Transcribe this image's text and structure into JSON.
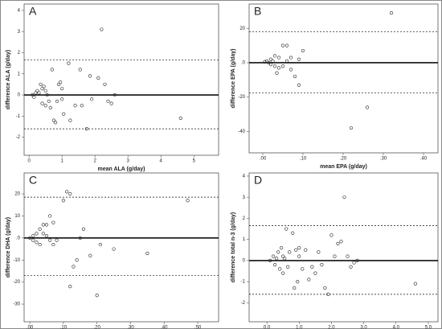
{
  "chart_data": [
    {
      "type": "scatter",
      "label": "A",
      "x_label": "mean ALA (g/day)",
      "y_label": "difference ALA (g/day)",
      "xlim": [
        -0.15,
        5.75
      ],
      "ylim": [
        -2.85,
        4.3
      ],
      "xticks": [
        0,
        1,
        2,
        3,
        4,
        5
      ],
      "yticks": [
        -2,
        -1,
        0,
        1,
        2,
        3,
        4
      ],
      "mean": 0,
      "upper_limit": 1.65,
      "lower_limit": -1.6,
      "x": [
        0.1,
        0.15,
        0.2,
        0.25,
        0.3,
        0.35,
        0.4,
        0.4,
        0.45,
        0.5,
        0.5,
        0.55,
        0.6,
        0.65,
        0.7,
        0.75,
        0.8,
        0.85,
        0.9,
        0.95,
        1.0,
        1.0,
        1.05,
        1.2,
        1.25,
        1.4,
        1.55,
        1.6,
        1.75,
        1.85,
        1.9,
        2.1,
        2.2,
        2.3,
        2.4,
        2.5,
        2.6,
        4.6
      ],
      "y": [
        0,
        -0.1,
        0.1,
        0.2,
        0.1,
        0.5,
        0.3,
        -0.4,
        0.4,
        -0.5,
        0.2,
        0,
        -0.3,
        -0.6,
        1.2,
        -1.2,
        -1.3,
        -0.3,
        0.5,
        0.6,
        0.3,
        -0.2,
        -0.9,
        1.5,
        -1.2,
        -0.5,
        1.2,
        -0.5,
        -1.6,
        0.9,
        -0.2,
        0.8,
        3.1,
        0.5,
        -0.3,
        -0.4,
        0,
        -1.1
      ]
    },
    {
      "type": "scatter",
      "label": "B",
      "x_label": "mean EPA (g/day)",
      "y_label": "difference EPA (g/day)",
      "xlim": [
        -0.034,
        0.436
      ],
      "ylim": [
        -52.5,
        34.2
      ],
      "xticks": [
        {
          "value": 0,
          "label": ".00"
        },
        {
          "value": 0.1,
          "label": ".10"
        },
        {
          "value": 0.2,
          "label": ".20"
        },
        {
          "value": 0.3,
          "label": ".30"
        },
        {
          "value": 0.4,
          "label": ".40"
        }
      ],
      "yticks": [
        {
          "value": -40,
          "label": "-40"
        },
        {
          "value": -20,
          "label": "-20"
        },
        {
          "value": 0,
          "label": ".0"
        },
        20
      ],
      "mean": 0,
      "upper_limit": 18,
      "lower_limit": -17.5,
      "x": [
        0.32,
        0.26,
        0.22,
        0.1,
        0.09,
        0.08,
        0.07,
        0.09,
        0.06,
        0.05,
        0.04,
        0.03,
        0.03,
        0.02,
        0.01,
        0.005,
        0.015,
        0.02,
        0.025,
        0.035,
        0.04,
        0.05,
        0.06,
        0.07
      ],
      "y": [
        29,
        -26,
        -38,
        7,
        2,
        -8,
        -4,
        -13,
        10,
        10,
        3,
        4,
        -2,
        2,
        1,
        0.5,
        0,
        -1,
        1,
        -6,
        -3,
        -2,
        1,
        3
      ]
    },
    {
      "type": "scatter",
      "label": "C",
      "x_label": "mean DHA (g/day)",
      "y_label": "difference DHA (g/day)",
      "xlim": [
        -0.017,
        0.562
      ],
      "ylim": [
        -38,
        29.5
      ],
      "xticks": [
        {
          "value": 0,
          "label": ".00"
        },
        {
          "value": 0.1,
          "label": ".10"
        },
        {
          "value": 0.2,
          "label": ".20"
        },
        {
          "value": 0.3,
          "label": ".30"
        },
        {
          "value": 0.4,
          "label": ".40"
        },
        {
          "value": 0.5,
          "label": ".50"
        }
      ],
      "yticks": [
        -30,
        -20,
        -10,
        {
          "value": 0,
          "label": ".0"
        },
        10,
        20
      ],
      "mean": 0,
      "upper_limit": 18.5,
      "lower_limit": -17,
      "x": [
        0,
        0.01,
        0.01,
        0.02,
        0.02,
        0.03,
        0.03,
        0.04,
        0.04,
        0.05,
        0.05,
        0.06,
        0.06,
        0.07,
        0.07,
        0.08,
        0.1,
        0.11,
        0.12,
        0.12,
        0.13,
        0.14,
        0.15,
        0.16,
        0.18,
        0.2,
        0.21,
        0.25,
        0.35,
        0.47
      ],
      "y": [
        0,
        1,
        -1,
        2,
        -2,
        -3,
        4,
        6,
        2,
        6,
        1,
        -1,
        10,
        7,
        -3,
        -1,
        17,
        21,
        20,
        -22,
        -13,
        -10,
        0,
        4,
        -8,
        -26,
        -3,
        -5,
        -7,
        17
      ]
    },
    {
      "type": "scatter",
      "label": "D",
      "x_label": "mean total n-3 (g/day)",
      "y_label": "difference total n-3 (g/day)",
      "xlim": [
        -0.55,
        5.3
      ],
      "ylim": [
        -2.9,
        4.15
      ],
      "xticks": [
        {
          "value": 0,
          "label": "0.0"
        },
        {
          "value": 1,
          "label": "1.0"
        },
        {
          "value": 2,
          "label": "2.0"
        },
        {
          "value": 3,
          "label": "3.0"
        },
        {
          "value": 4,
          "label": "4.0"
        },
        {
          "value": 5,
          "label": "5.0"
        }
      ],
      "yticks": [
        -2,
        -1,
        0,
        1,
        2,
        3,
        4
      ],
      "mean": 0,
      "upper_limit": 1.65,
      "lower_limit": -1.6,
      "x": [
        0.1,
        0.2,
        0.25,
        0.3,
        0.35,
        0.4,
        0.45,
        0.5,
        0.5,
        0.55,
        0.6,
        0.65,
        0.7,
        0.8,
        0.85,
        0.9,
        0.95,
        1.0,
        1.0,
        1.1,
        1.2,
        1.3,
        1.4,
        1.5,
        1.6,
        1.7,
        1.8,
        1.9,
        2.0,
        2.1,
        2.2,
        2.3,
        2.4,
        2.5,
        2.6,
        2.7,
        2.8,
        4.6
      ],
      "y": [
        0,
        0.2,
        -0.2,
        0.1,
        0.4,
        -0.4,
        0.6,
        0.2,
        -0.6,
        0.1,
        1.5,
        -0.3,
        0.4,
        1.3,
        -1.3,
        0.5,
        -1.0,
        0.6,
        0.2,
        -0.4,
        0.5,
        -0.9,
        -0.3,
        -0.6,
        0.4,
        -0.2,
        -1.3,
        -1.6,
        1.2,
        0.2,
        0.8,
        0.9,
        3.0,
        0.2,
        -0.3,
        -0.1,
        0,
        -1.1
      ]
    }
  ]
}
